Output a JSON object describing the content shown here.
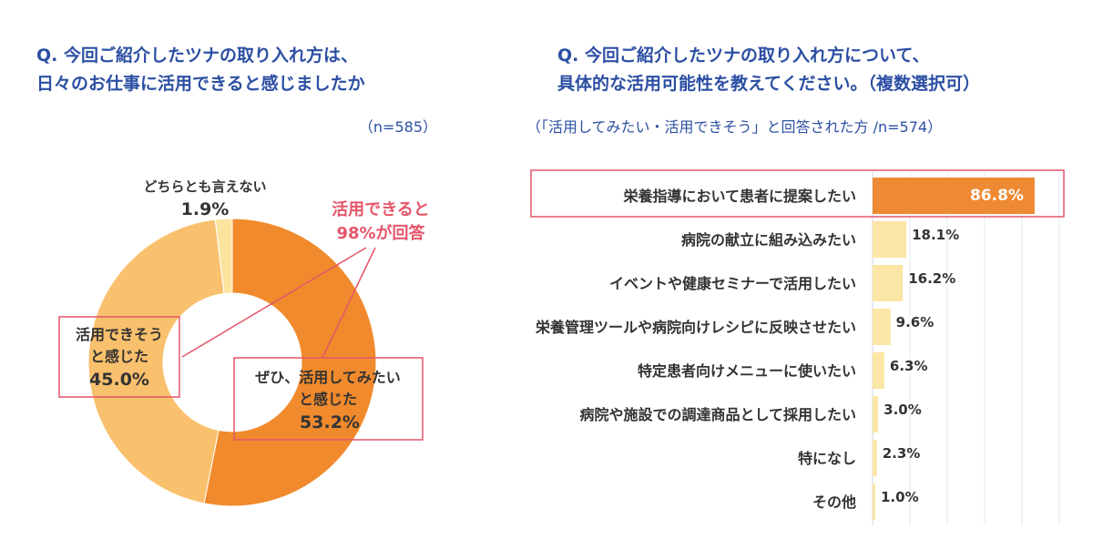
{
  "left": {
    "question_lines": [
      "Q. 今回ご紹介したツナの取り入れ方は、",
      "日々のお仕事に活用できると感じましたか"
    ],
    "sample_note": "（n=585）",
    "callout_lines": [
      "活用できると",
      "98%が回答"
    ]
  },
  "right": {
    "question_lines": [
      "Q. 今回ご紹介したツナの取り入れ方について、",
      "具体的な活用可能性を教えてください。（複数選択可）"
    ],
    "sample_note": "（「活用してみたい・活用できそう」と回答された方 /n=574）"
  },
  "colors": {
    "title": "#2c4fa3",
    "highlight_red": "#e5566a",
    "donut_dark_orange": "#f08a2c",
    "donut_light_orange": "#f9c06d",
    "donut_pale_yellow": "#fbe3a0",
    "bar_top": "#ee8a33",
    "bar_rest": "#fbe6a6",
    "grid": "#e4e8f0",
    "text_dark": "#333333"
  },
  "chart_data": [
    {
      "type": "pie",
      "donut": true,
      "slices": [
        {
          "label_lines": [
            "ぜひ、活用してみたい",
            "と感じた"
          ],
          "value": 53.2,
          "value_label": "53.2%",
          "color": "#f08a2c",
          "boxed": true
        },
        {
          "label_lines": [
            "活用できそう",
            "と感じた"
          ],
          "value": 45.0,
          "value_label": "45.0%",
          "color": "#f9c06d",
          "boxed": true
        },
        {
          "label_lines": [
            "どちらとも言えない"
          ],
          "value": 1.9,
          "value_label": "1.9%",
          "color": "#fbe3a0",
          "boxed": false
        }
      ]
    },
    {
      "type": "bar",
      "orientation": "horizontal",
      "categories": [
        "栄養指導において患者に提案したい",
        "病院の献立に組み込みたい",
        "イベントや健康セミナーで活用したい",
        "栄養管理ツールや病院向けレシピに反映させたい",
        "特定患者向けメニューに使いたい",
        "病院や施設での調達商品として採用したい",
        "特になし",
        "その他"
      ],
      "values": [
        86.8,
        18.1,
        16.2,
        9.6,
        6.3,
        3.0,
        2.3,
        1.0
      ],
      "value_labels": [
        "86.8%",
        "18.1%",
        "16.2%",
        "9.6%",
        "6.3%",
        "3.0%",
        "2.3%",
        "1.0%"
      ],
      "highlighted_index": 0,
      "xlim": [
        0,
        100
      ],
      "grid": true
    }
  ]
}
